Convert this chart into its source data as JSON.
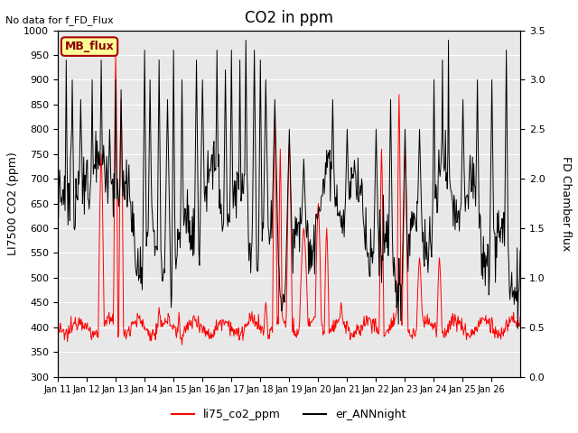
{
  "title": "CO2 in ppm",
  "top_left_text": "No data for f_FD_Flux",
  "ylabel_left": "LI7500 CO2 (ppm)",
  "ylabel_right": "FD Chamber flux",
  "ylim_left": [
    300,
    1000
  ],
  "ylim_right": [
    0.0,
    3.5
  ],
  "yticks_left": [
    300,
    350,
    400,
    450,
    500,
    550,
    600,
    650,
    700,
    750,
    800,
    850,
    900,
    950,
    1000
  ],
  "yticks_right": [
    0.0,
    0.5,
    1.0,
    1.5,
    2.0,
    2.5,
    3.0,
    3.5
  ],
  "xtick_labels": [
    "Jan 11",
    "Jan 12",
    "Jan 13",
    "Jan 14",
    "Jan 15",
    "Jan 16",
    "Jan 17",
    "Jan 18",
    "Jan 19",
    "Jan 20",
    "Jan 21",
    "Jan 22",
    "Jan 23",
    "Jan 24",
    "Jan 25",
    "Jan 26"
  ],
  "legend_labels": [
    "li75_co2_ppm",
    "er_ANNnight"
  ],
  "legend_colors": [
    "red",
    "black"
  ],
  "box_label": "MB_flux",
  "box_facecolor": "#ffff99",
  "box_edgecolor": "#aa0000",
  "background_color": "#e8e8e8",
  "grid_color": "white",
  "title_fontsize": 12,
  "label_fontsize": 9,
  "tick_fontsize": 8
}
